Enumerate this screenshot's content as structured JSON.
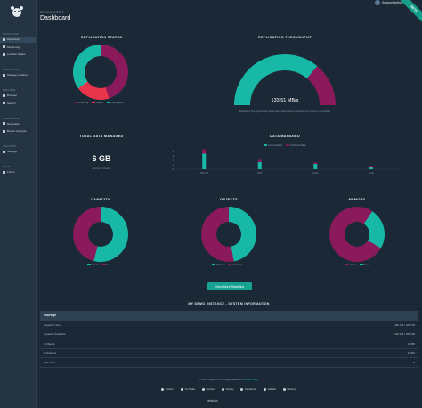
{
  "sidebar": {
    "groups": [
      {
        "label": "NAVIGATOR",
        "items": [
          {
            "label": "Dashboard",
            "active": true
          },
          {
            "label": "Monitoring",
            "active": false
          },
          {
            "label": "Location Status",
            "active": false
          }
        ]
      },
      {
        "label": "LOCATIONS",
        "items": [
          {
            "label": "Storage Locations",
            "active": false
          }
        ]
      },
      {
        "label": "EXPLORE",
        "items": [
          {
            "label": "Browser",
            "active": false
          },
          {
            "label": "Search",
            "active": false
          }
        ]
      },
      {
        "label": "WORKFLOWS",
        "items": [
          {
            "label": "Replication",
            "active": false
          },
          {
            "label": "Bucket Lifecycle",
            "active": false
          }
        ]
      },
      {
        "label": "ACCOUNT",
        "items": [
          {
            "label": "Settings",
            "active": false
          }
        ]
      },
      {
        "label": "HELP",
        "items": [
          {
            "label": "Forum",
            "active": false
          }
        ]
      }
    ]
  },
  "header": {
    "org": "ZENKO ORBIT",
    "title": "Dashboard",
    "user": "SodaneNaHub",
    "beta": "BETA"
  },
  "colors": {
    "teal": "#17b8a6",
    "magenta": "#8a1a5c",
    "red": "#e8354c",
    "background": "#1b2936"
  },
  "replication_status": {
    "title": "REPLICATION STATUS",
    "legend": [
      "Pending",
      "Failed",
      "Completed"
    ]
  },
  "replication_throughput": {
    "title": "REPLICATION THROUGHPUT",
    "value": "133.51 MB/s",
    "caption": "Replication throughput is the rate at which data is being replicated from source to destination",
    "fraction": 0.72
  },
  "total_data": {
    "title": "TOTAL DATA MANAGED",
    "value": "6 GB",
    "caption": "across all clouds"
  },
  "data_managed": {
    "title": "DATA MANAGED",
    "legend": [
      "Current Data",
      "Archived Data"
    ]
  },
  "capacity": {
    "title": "CAPACITY",
    "legend": [
      "Used",
      "Free"
    ]
  },
  "objects": {
    "title": "OBJECTS",
    "legend": [
      "Objects",
      "Versions"
    ]
  },
  "memory": {
    "title": "MEMORY",
    "legend": [
      "Used",
      "Free"
    ]
  },
  "view_stats_button": "View More Statistics",
  "system_info": {
    "title": "MY DEMO INSTANCE - SYSTEM INFORMATION",
    "table_header": "Storage",
    "rows": [
      {
        "label": "Capacity Used",
        "value": "495 GB / 925 GB"
      },
      {
        "label": "Capacity Available",
        "value": "426 GB / 925 GB"
      },
      {
        "label": "# Objects",
        "value": "21089"
      },
      {
        "label": "# Versions",
        "value": "23452"
      },
      {
        "label": "# Buckets",
        "value": "5"
      }
    ]
  },
  "footer": {
    "copyright": "© 2018 Scality, Inc. All rights reserved.",
    "privacy": "Privacy Policy",
    "links": [
      "Twitter",
      "YouTube",
      "Docker",
      "Scality",
      "Facebook",
      "GitHub",
      "Meetup"
    ],
    "brand": "zenko.io"
  },
  "chart_data": [
    {
      "type": "pie",
      "title": "REPLICATION STATUS",
      "labels": [
        "Pending",
        "Failed",
        "Completed"
      ],
      "values": [
        45,
        20,
        35
      ]
    },
    {
      "type": "pie",
      "title": "REPLICATION THROUGHPUT",
      "labels": [
        "Throughput",
        "Remaining"
      ],
      "values": [
        72,
        28
      ]
    },
    {
      "type": "bar",
      "title": "DATA MANAGED",
      "categories": [
        "AWS S3",
        "GCP",
        "Azure",
        "Ceph"
      ],
      "series": [
        {
          "name": "Current Data",
          "values": [
            3.5,
            1.6,
            1.2,
            0.6
          ]
        },
        {
          "name": "Archived Data",
          "values": [
            1.0,
            0.5,
            0.3,
            0.2
          ]
        }
      ],
      "ylim": [
        0,
        4
      ]
    },
    {
      "type": "pie",
      "title": "CAPACITY",
      "labels": [
        "Used",
        "Free"
      ],
      "values": [
        54,
        46
      ]
    },
    {
      "type": "pie",
      "title": "OBJECTS",
      "labels": [
        "Objects",
        "Versions"
      ],
      "values": [
        47,
        53
      ]
    },
    {
      "type": "pie",
      "title": "MEMORY",
      "labels": [
        "Used",
        "Free"
      ],
      "values": [
        76,
        24
      ]
    }
  ]
}
